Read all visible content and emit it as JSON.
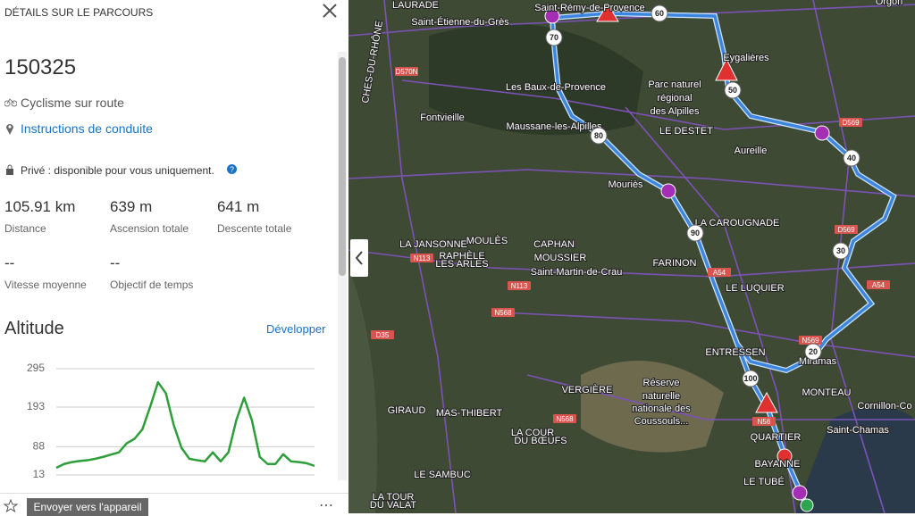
{
  "panel": {
    "title": "DÉTAILS SUR LE PARCOURS",
    "route_name": "150325",
    "activity": "Cyclisme sur route",
    "directions_link": "Instructions de conduite",
    "privacy": "Privé : disponible pour vous uniquement.",
    "stats": [
      {
        "value": "105.91 km",
        "label": "Distance"
      },
      {
        "value": "639 m",
        "label": "Ascension totale"
      },
      {
        "value": "641 m",
        "label": "Descente totale"
      },
      {
        "value": "--",
        "label": "Vitesse moyenne"
      },
      {
        "value": "--",
        "label": "Objectif de temps"
      }
    ],
    "altitude_title": "Altitude",
    "expand": "Développer",
    "send_button": "Envoyer vers l'appareil"
  },
  "chart_data": {
    "type": "line",
    "color": "#2e9e3a",
    "grid": true,
    "ylim": [
      13,
      295
    ],
    "yticks": [
      13,
      88,
      193,
      295
    ],
    "values": [
      32,
      42,
      47,
      50,
      52,
      56,
      61,
      67,
      73,
      97,
      109,
      134,
      194,
      259,
      230,
      146,
      85,
      56,
      52,
      49,
      73,
      49,
      73,
      158,
      218,
      158,
      61,
      42,
      42,
      68,
      49,
      47,
      44,
      37
    ]
  },
  "map": {
    "places": [
      "LAURADE",
      "Saint-Étienne-du-Grès",
      "Saint-Rémy-de-Provence",
      "Eygalières",
      "Les Baux-de-Provence",
      "Parc naturel",
      "régional",
      "des Alpilles",
      "Fontvieille",
      "Maussane-les-Alpilles",
      "LE DESTET",
      "Aureille",
      "Mouriès",
      "LA CAROUGNADE",
      "LA JANSONNE",
      "MOULÈS",
      "CAPHAN",
      "RAPHÈLE",
      "LES ARLES",
      "MOUSSIER",
      "Saint-Martin-de-Crau",
      "FARINON",
      "LE LUQUIER",
      "ENTRESSEN",
      "Miramas",
      "Réserve",
      "naturelle",
      "nationale des",
      "Coussouls...",
      "VERGIÈRE",
      "MONTEAU",
      "GIRAUD",
      "MAS-THIBERT",
      "Cornillon-Co",
      "Saint-Chamas",
      "LA COUR",
      "DU BŒUFS",
      "QUARTIER",
      "BAYANNE",
      "LE SAMBUC",
      "LE TUBÉ",
      "LA TOUR",
      "DU VALAT",
      "Orgon",
      "CHES-DU-RHÔNE"
    ],
    "roads": [
      "D570N",
      "D569",
      "D569",
      "N113",
      "N113",
      "N568",
      "D35",
      "A54",
      "A54",
      "N569",
      "N568",
      "N56"
    ],
    "km_markers": [
      "70",
      "60",
      "50",
      "80",
      "40",
      "90",
      "30",
      "20",
      "100"
    ]
  }
}
